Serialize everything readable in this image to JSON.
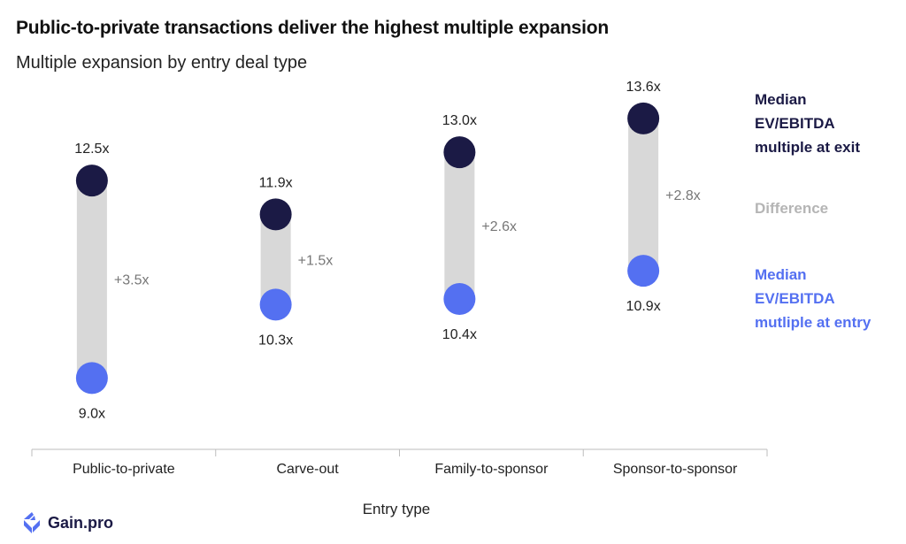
{
  "title": "Public-to-private transactions deliver the highest multiple expansion",
  "subtitle": "Multiple expansion by entry deal type",
  "colors": {
    "exit": "#1b1a45",
    "entry": "#5470f1",
    "difference": "#d8d8d8",
    "difference_label": "#b5b5b5",
    "axis": "#bdbdbd",
    "text": "#222222",
    "label_muted": "#777777"
  },
  "legend": {
    "exit": "Median\nEV/EBITDA\nmultiple at exit",
    "difference": "Difference",
    "entry": "Median\nEV/EBITDA\nmutliple at entry"
  },
  "brand": {
    "name": "Gain.pro",
    "icon": "gainpro-logo-icon"
  },
  "chart_data": {
    "type": "dumbbell",
    "xlabel": "Entry type",
    "ylabel": "",
    "categories": [
      "Public-to-private",
      "Carve-out",
      "Family-to-sponsor",
      "Sponsor-to-sponsor"
    ],
    "series": [
      {
        "name": "Median EV/EBITDA multiple at exit",
        "values": [
          12.5,
          11.9,
          13.0,
          13.6
        ],
        "labels": [
          "12.5x",
          "11.9x",
          "13.0x",
          "13.6x"
        ]
      },
      {
        "name": "Median EV/EBITDA mutliple at entry",
        "values": [
          9.0,
          10.3,
          10.4,
          10.9
        ],
        "labels": [
          "9.0x",
          "10.3x",
          "10.4x",
          "10.9x"
        ]
      }
    ],
    "difference_labels": [
      "+3.5x",
      "+1.5x",
      "+2.6x",
      "+2.8x"
    ],
    "ylim": [
      8.3,
      14.1
    ],
    "grid": false,
    "legend_position": "right"
  }
}
